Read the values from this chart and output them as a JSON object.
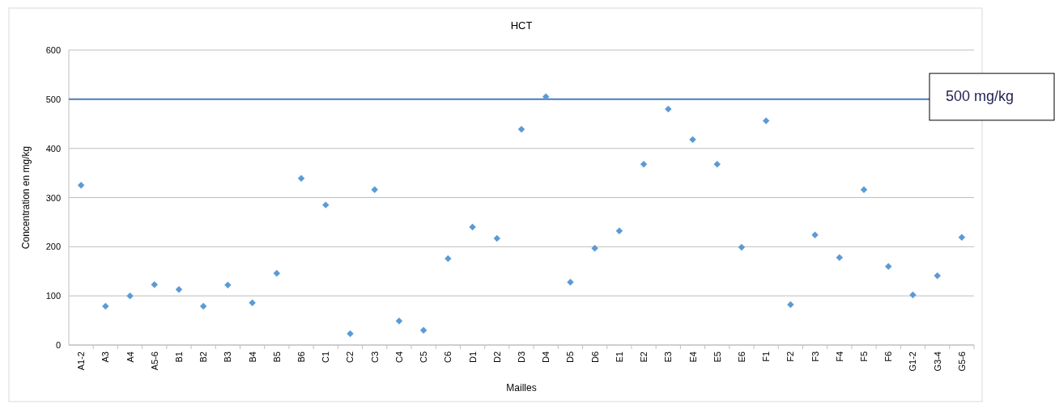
{
  "chart_data": {
    "type": "scatter",
    "title": "HCT",
    "xlabel": "Mailles",
    "ylabel": "Concentration en mg/kg",
    "categories": [
      "A1-2",
      "A3",
      "A4",
      "A5-6",
      "B1",
      "B2",
      "B3",
      "B4",
      "B5",
      "B6",
      "C1",
      "C2",
      "C3",
      "C4",
      "C5",
      "C6",
      "D1",
      "D2",
      "D3",
      "D4",
      "D5",
      "D6",
      "E1",
      "E2",
      "E3",
      "E4",
      "E5",
      "E6",
      "F1",
      "F2",
      "F3",
      "F4",
      "F5",
      "F6",
      "G1-2",
      "G3-4",
      "G5-6"
    ],
    "series": [
      {
        "color": "#5b9bd5",
        "values": [
          325,
          79,
          100,
          123,
          113,
          79,
          122,
          86,
          146,
          339,
          285,
          23,
          316,
          49,
          30,
          176,
          240,
          217,
          439,
          505,
          128,
          197,
          232,
          368,
          480,
          418,
          368,
          199,
          456,
          82,
          224,
          178,
          316,
          160,
          102,
          141,
          219
        ]
      }
    ],
    "ylim": [
      0,
      600
    ],
    "yticks": [
      0,
      100,
      200,
      300,
      400,
      500,
      600
    ],
    "grid": "y",
    "marker": "diamond",
    "ref_lines": [
      {
        "axis": "y",
        "value": 500,
        "label": "500 mg/kg",
        "color": "#4a7ebb"
      }
    ]
  }
}
